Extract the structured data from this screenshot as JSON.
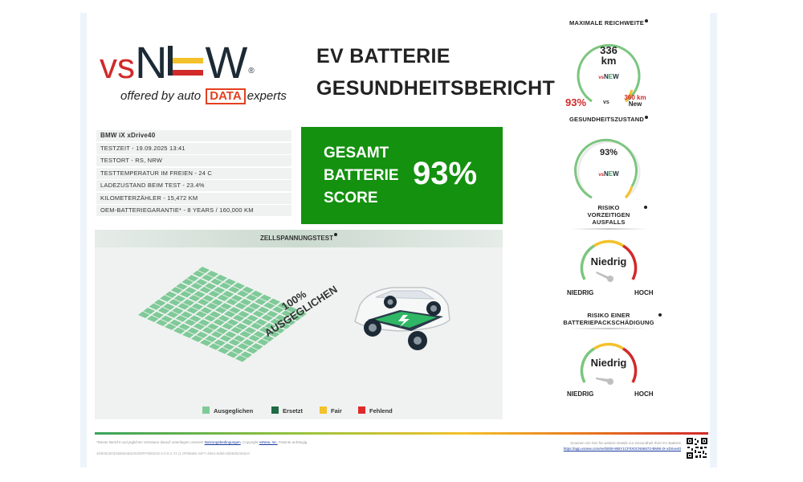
{
  "header": {
    "logo": {
      "vs": "vs",
      "n": "N",
      "w": "W",
      "registered": "®",
      "tagline_before": "offered by auto",
      "tagline_data": "DATA",
      "tagline_after": "experts"
    },
    "title_line1": "EV BATTERIE",
    "title_line2": "GESUNDHEITSBERICHT"
  },
  "vehicle": {
    "model": "BMW iX xDrive40",
    "rows": [
      "TESTZEIT - 19.09.2025 13:41",
      "TESTORT - RS, NRW",
      "TESTTEMPERATUR IM FREIEN - 24 C",
      "LADEZUSTAND BEIM TEST - 23.4%",
      "KILOMETERZÄHLER - 15,472 KM",
      "OEM-BATTERIEGARANTIE* - 8 YEARS / 160,000 KM"
    ]
  },
  "score": {
    "label_line1": "GESAMT",
    "label_line2": "BATTERIE",
    "label_line3": "SCORE",
    "value": "93%"
  },
  "cell_test": {
    "title": "ZELLSPANNUNGSTEST",
    "balanced_line1": "100%",
    "balanced_line2": "AUSGEGLICHEN",
    "legend": [
      {
        "label": "Ausgeglichen",
        "color": "#7fca98"
      },
      {
        "label": "Ersetzt",
        "color": "#1e6b45"
      },
      {
        "label": "Fair",
        "color": "#f3c12b"
      },
      {
        "label": "Fehlend",
        "color": "#e02a2a"
      }
    ]
  },
  "range": {
    "title": "MAXIMALE REICHWEITE",
    "value": "336",
    "unit": "km",
    "percent": "93%",
    "vs": "vs",
    "new_value": "360 km",
    "new_label": "New",
    "level": 0.93
  },
  "health": {
    "title": "GESUNDHEITSZUSTAND",
    "value": "93%",
    "level": 0.93
  },
  "risk_early_failure": {
    "title_line1": "RISIKO",
    "title_line2": "VORZEITIGEN",
    "title_line3": "AUSFALLS",
    "value": "Niedrig",
    "low": "NIEDRIG",
    "high": "HOCH"
  },
  "risk_pack_damage": {
    "title_line1": "RISIKO EINER",
    "title_line2": "BATTERIEPACKSCHÄDIGUNG",
    "value": "Niedrig",
    "low": "NIEDRIG",
    "high": "HOCH"
  },
  "footer": {
    "note_before": "*Dieser Bericht und jegliches Vertrauen darauf unterliegen unseren",
    "note_link": "Nutzungsbedingungen",
    "note_middle": ". Copyright",
    "note_company": "vsNew, Inc.",
    "note_after": " Patente anhängig",
    "id": "4D605230334B554B4202D0FF080D18-3.0.0-2.72 (1.0F99a85-44F7-4954-8d58-dd38d523ebc0",
    "scan_text": "Scannen Sie hier für weitere Details zur Gesundheit Ihrer EV Batterie",
    "scan_link": "https://app.vsnew.com/ev/5009-WBY1CF0X0CN96872-BMW-iX-xDrive40"
  },
  "colors": {
    "score_bg": "#14910f",
    "good": "#3aa35b",
    "warn": "#f3c12b",
    "bad": "#d12a2a"
  }
}
